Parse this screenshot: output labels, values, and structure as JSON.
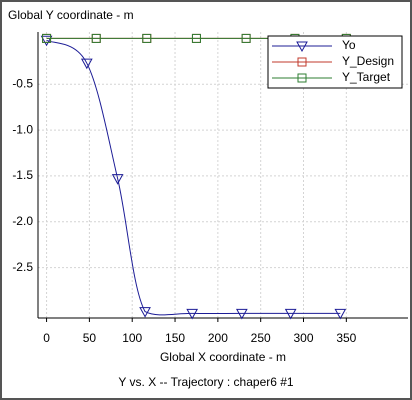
{
  "chart_data": {
    "type": "line",
    "y_label": "Global Y coordinate - m",
    "x_label": "Global X coordinate - m",
    "caption": "Y vs. X -- Trajectory : chaper6 #1",
    "xlim": [
      -10,
      422
    ],
    "ylim": [
      -3.05,
      0.07
    ],
    "xticks": [
      0,
      50,
      100,
      150,
      200,
      250,
      300,
      350
    ],
    "yticks": [
      -0.5,
      {
        "value": -1.0,
        "label": "-1.0"
      },
      -1.5,
      {
        "value": -2.0,
        "label": "-2.0"
      },
      -2.5
    ],
    "grid": true,
    "legend": "top-right",
    "series": [
      {
        "name": "Yo",
        "color": "#1c1c96",
        "marker": "triangle-down",
        "x": [
          0,
          47,
          83,
          115,
          170,
          228,
          285,
          343
        ],
        "values": [
          -0.02,
          -0.27,
          -1.53,
          -2.98,
          -3.0,
          -3.0,
          -3.0,
          -3.0
        ]
      },
      {
        "name": "Y_Design",
        "color": "#c0392b",
        "marker": "square",
        "x": [
          0,
          58,
          117,
          175,
          233,
          290,
          350
        ],
        "values": [
          0,
          0,
          0,
          0,
          0,
          0,
          0
        ]
      },
      {
        "name": "Y_Target",
        "color": "#2e7d32",
        "marker": "square",
        "x": [
          0,
          58,
          117,
          175,
          233,
          290,
          350
        ],
        "values": [
          0,
          0,
          0,
          0,
          0,
          0,
          0
        ]
      }
    ]
  }
}
